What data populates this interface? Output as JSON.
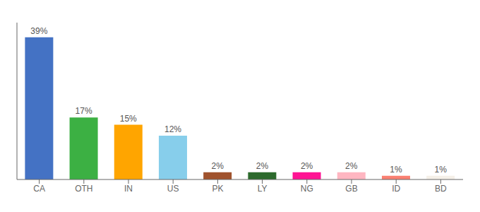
{
  "chart_data": {
    "type": "bar",
    "categories": [
      "CA",
      "OTH",
      "IN",
      "US",
      "PK",
      "LY",
      "NG",
      "GB",
      "ID",
      "BD"
    ],
    "values": [
      39,
      17,
      15,
      12,
      2,
      2,
      2,
      2,
      1,
      1
    ],
    "value_labels": [
      "39%",
      "17%",
      "15%",
      "12%",
      "2%",
      "2%",
      "2%",
      "2%",
      "1%",
      "1%"
    ],
    "colors": [
      "#4472C4",
      "#3CB043",
      "#FFA500",
      "#87CEEB",
      "#A0522D",
      "#2D6A2D",
      "#FF1493",
      "#FFB6C1",
      "#FA8072",
      "#F5F0E8"
    ],
    "ylim": [
      0,
      43
    ],
    "data_labels": true,
    "tick_labels": "x",
    "grid": false
  }
}
